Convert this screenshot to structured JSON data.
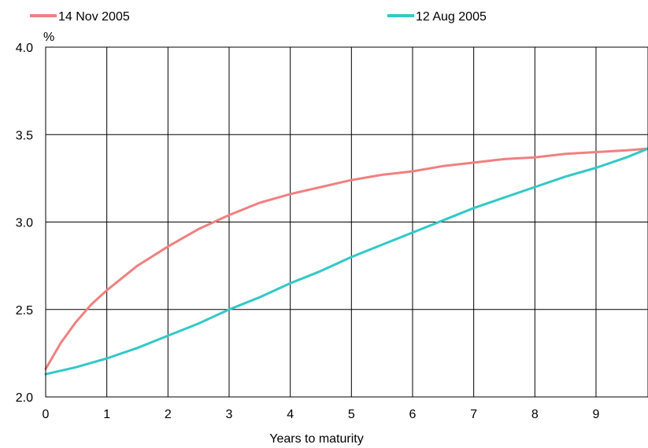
{
  "chart_data": {
    "type": "line",
    "title": "",
    "xlabel": "Years to maturity",
    "ylabel": "%",
    "xlim": [
      0,
      9.85
    ],
    "ylim": [
      2.0,
      4.0
    ],
    "x_ticks": [
      0,
      1,
      2,
      3,
      4,
      5,
      6,
      7,
      8,
      9
    ],
    "y_ticks": [
      "2.0",
      "2.5",
      "3.0",
      "3.5",
      "4.0"
    ],
    "grid": true,
    "legend_position": "top",
    "series": [
      {
        "name": "14 Nov 2005",
        "color": "#f08080",
        "x": [
          0,
          0.25,
          0.5,
          0.75,
          1,
          1.5,
          2,
          2.5,
          3,
          3.5,
          4,
          4.5,
          5,
          5.5,
          6,
          6.5,
          7,
          7.5,
          8,
          8.5,
          9,
          9.5,
          9.85
        ],
        "values": [
          2.16,
          2.31,
          2.43,
          2.53,
          2.61,
          2.75,
          2.86,
          2.96,
          3.04,
          3.11,
          3.16,
          3.2,
          3.24,
          3.27,
          3.29,
          3.32,
          3.34,
          3.36,
          3.37,
          3.39,
          3.4,
          3.41,
          3.42
        ]
      },
      {
        "name": "12 Aug 2005",
        "color": "#33c8c8",
        "x": [
          0,
          0.5,
          1,
          1.5,
          2,
          2.5,
          3,
          3.5,
          4,
          4.5,
          5,
          5.5,
          6,
          6.5,
          7,
          7.5,
          8,
          8.5,
          9,
          9.5,
          9.85
        ],
        "values": [
          2.13,
          2.17,
          2.22,
          2.28,
          2.35,
          2.42,
          2.5,
          2.57,
          2.65,
          2.72,
          2.8,
          2.87,
          2.94,
          3.01,
          3.08,
          3.14,
          3.2,
          3.26,
          3.31,
          3.37,
          3.42
        ]
      }
    ]
  }
}
